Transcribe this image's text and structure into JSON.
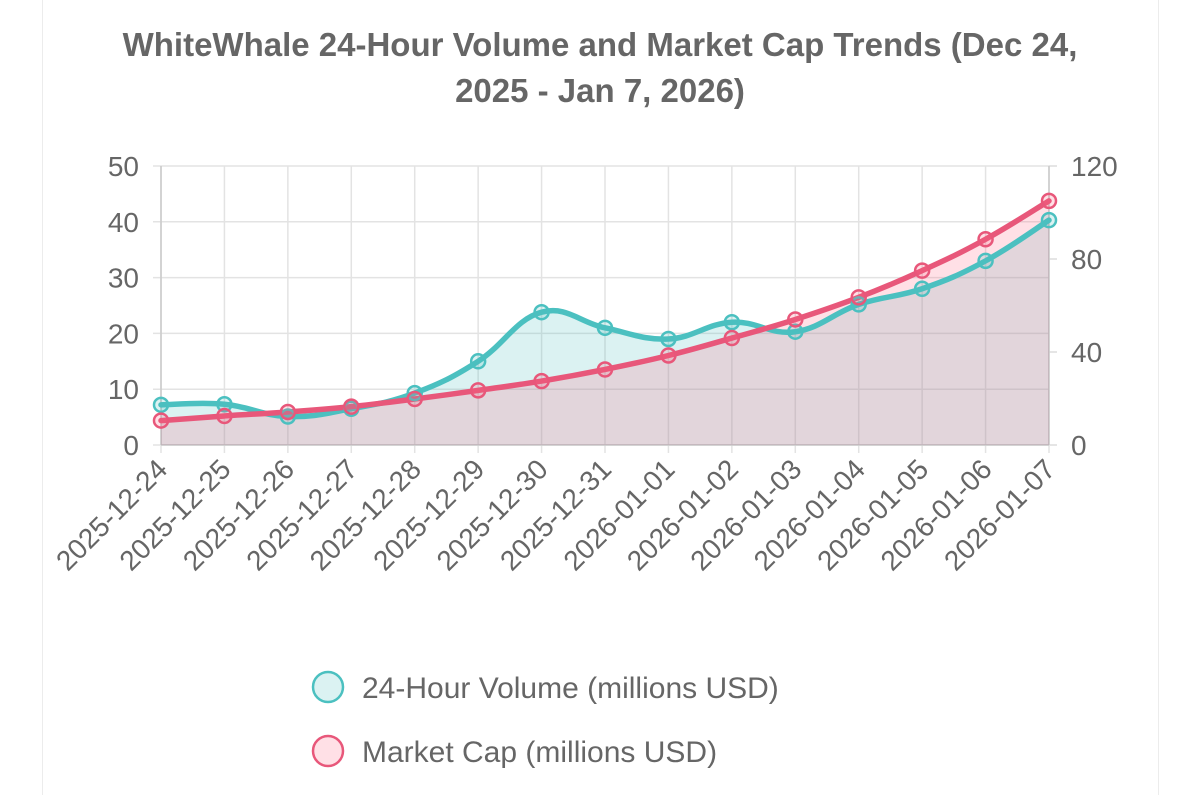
{
  "chart_data": {
    "type": "line",
    "title": "WhiteWhale 24-Hour Volume and Market Cap Trends (Dec 24, 2025 - Jan 7, 2026)",
    "title_lines": [
      "WhiteWhale 24-Hour Volume and Market Cap Trends (Dec 24,",
      "2025 - Jan 7, 2026)"
    ],
    "categories": [
      "2025-12-24",
      "2025-12-25",
      "2025-12-26",
      "2025-12-27",
      "2025-12-28",
      "2025-12-29",
      "2025-12-30",
      "2025-12-31",
      "2026-01-01",
      "2026-01-02",
      "2026-01-03",
      "2026-01-04",
      "2026-01-05",
      "2026-01-06",
      "2026-01-07"
    ],
    "y_left": {
      "min": 0,
      "max": 50,
      "ticks": [
        0,
        10,
        20,
        30,
        40,
        50
      ]
    },
    "y_right": {
      "min": 0,
      "max": 120,
      "ticks": [
        0,
        40,
        80,
        120
      ]
    },
    "grid": true,
    "legend_position": "bottom",
    "series": [
      {
        "name": "24-Hour Volume (millions USD)",
        "axis": "left",
        "color": "#4bc0c0",
        "fill": "rgba(75,192,192,0.2)",
        "values": [
          7.2,
          7.3,
          5.1,
          6.5,
          9.3,
          15.0,
          23.8,
          21.0,
          19.0,
          22.0,
          20.3,
          25.2,
          28.0,
          33.0,
          40.3
        ]
      },
      {
        "name": "Market Cap (millions USD)",
        "axis": "right",
        "color": "#e8577a",
        "fill": "rgba(255,99,132,0.2)",
        "values": [
          10.5,
          12.5,
          14.2,
          16.5,
          19.8,
          23.5,
          27.5,
          32.5,
          38.5,
          46.0,
          54.0,
          63.5,
          75.0,
          88.5,
          105.0
        ]
      }
    ]
  }
}
